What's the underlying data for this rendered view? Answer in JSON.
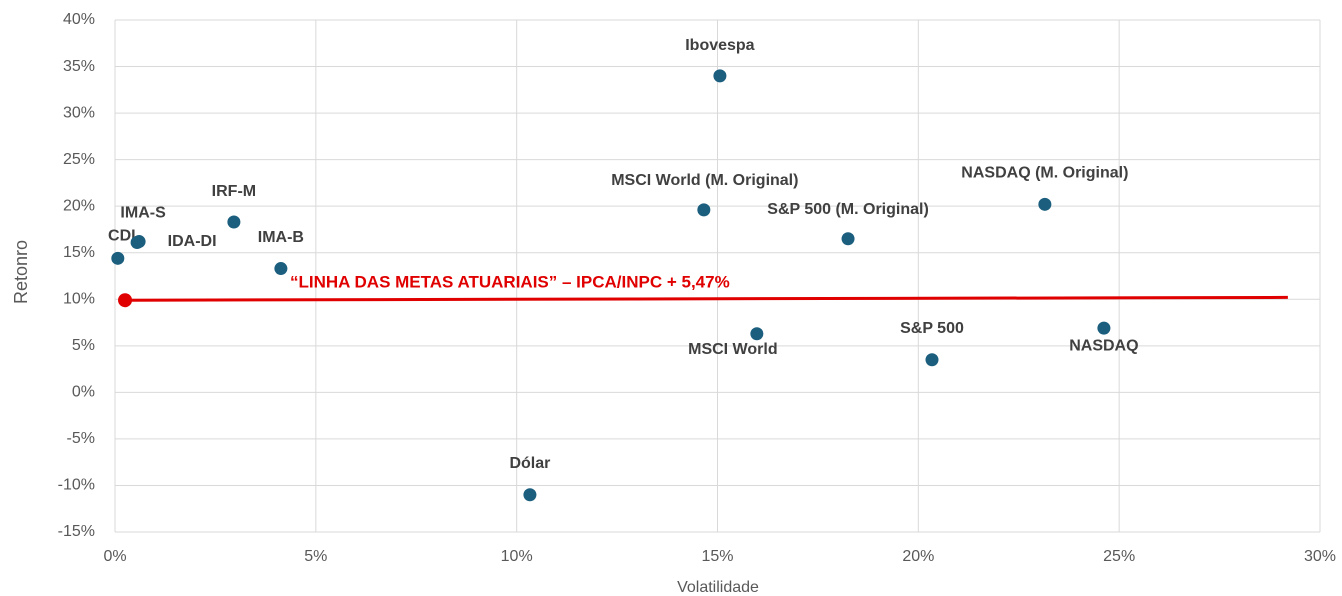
{
  "chart_data": {
    "type": "scatter",
    "x_label": "Volatilidade",
    "y_label": "Retonro",
    "point_labels": [
      "CDI",
      "IMA-S",
      "IDA-DI",
      "IRF-M",
      "IMA-B",
      "Ibovespa",
      "MSCI World (M. Original)",
      "S&P 500 (M. Original)",
      "NASDAQ (M. Original)",
      "MSCI World",
      "S&P 500",
      "NASDAQ",
      "Dólar"
    ],
    "x": [
      0.07,
      0.55,
      0.6,
      2.96,
      4.13,
      15.06,
      14.66,
      18.25,
      23.15,
      15.98,
      20.34,
      24.62,
      10.33
    ],
    "values": [
      14.4,
      16.1,
      16.2,
      18.3,
      13.3,
      34.0,
      19.6,
      16.5,
      20.2,
      6.3,
      3.5,
      6.9,
      -11.0
    ],
    "color": "#1b5e7e",
    "target_line": {
      "label": "“LINHA DAS METAS ATUARIAIS” – IPCA/INPC + 5,47%",
      "x": [
        0.25,
        29.2
      ],
      "values": [
        9.9,
        10.2
      ],
      "color": "#e00000"
    },
    "xlim": [
      0,
      30
    ],
    "xticks": [
      {
        "value": 0,
        "label": "0%"
      },
      {
        "value": 5,
        "label": "5%"
      },
      {
        "value": 10,
        "label": "10%"
      },
      {
        "value": 15,
        "label": "15%"
      },
      {
        "value": 20,
        "label": "20%"
      },
      {
        "value": 25,
        "label": "25%"
      },
      {
        "value": 30,
        "label": "30%"
      }
    ],
    "ylim": [
      -15,
      40
    ],
    "yticks": [
      {
        "value": -15,
        "label": "-15%"
      },
      {
        "value": -10,
        "label": "-10%"
      },
      {
        "value": -5,
        "label": "-5%"
      },
      {
        "value": 0,
        "label": "0%"
      },
      {
        "value": 5,
        "label": "5%"
      },
      {
        "value": 10,
        "label": "10%"
      },
      {
        "value": 15,
        "label": "15%"
      },
      {
        "value": 20,
        "label": "20%"
      },
      {
        "value": 25,
        "label": "25%"
      },
      {
        "value": 30,
        "label": "30%"
      },
      {
        "value": 35,
        "label": "35%"
      },
      {
        "value": 40,
        "label": "40%"
      }
    ],
    "grid": true
  }
}
